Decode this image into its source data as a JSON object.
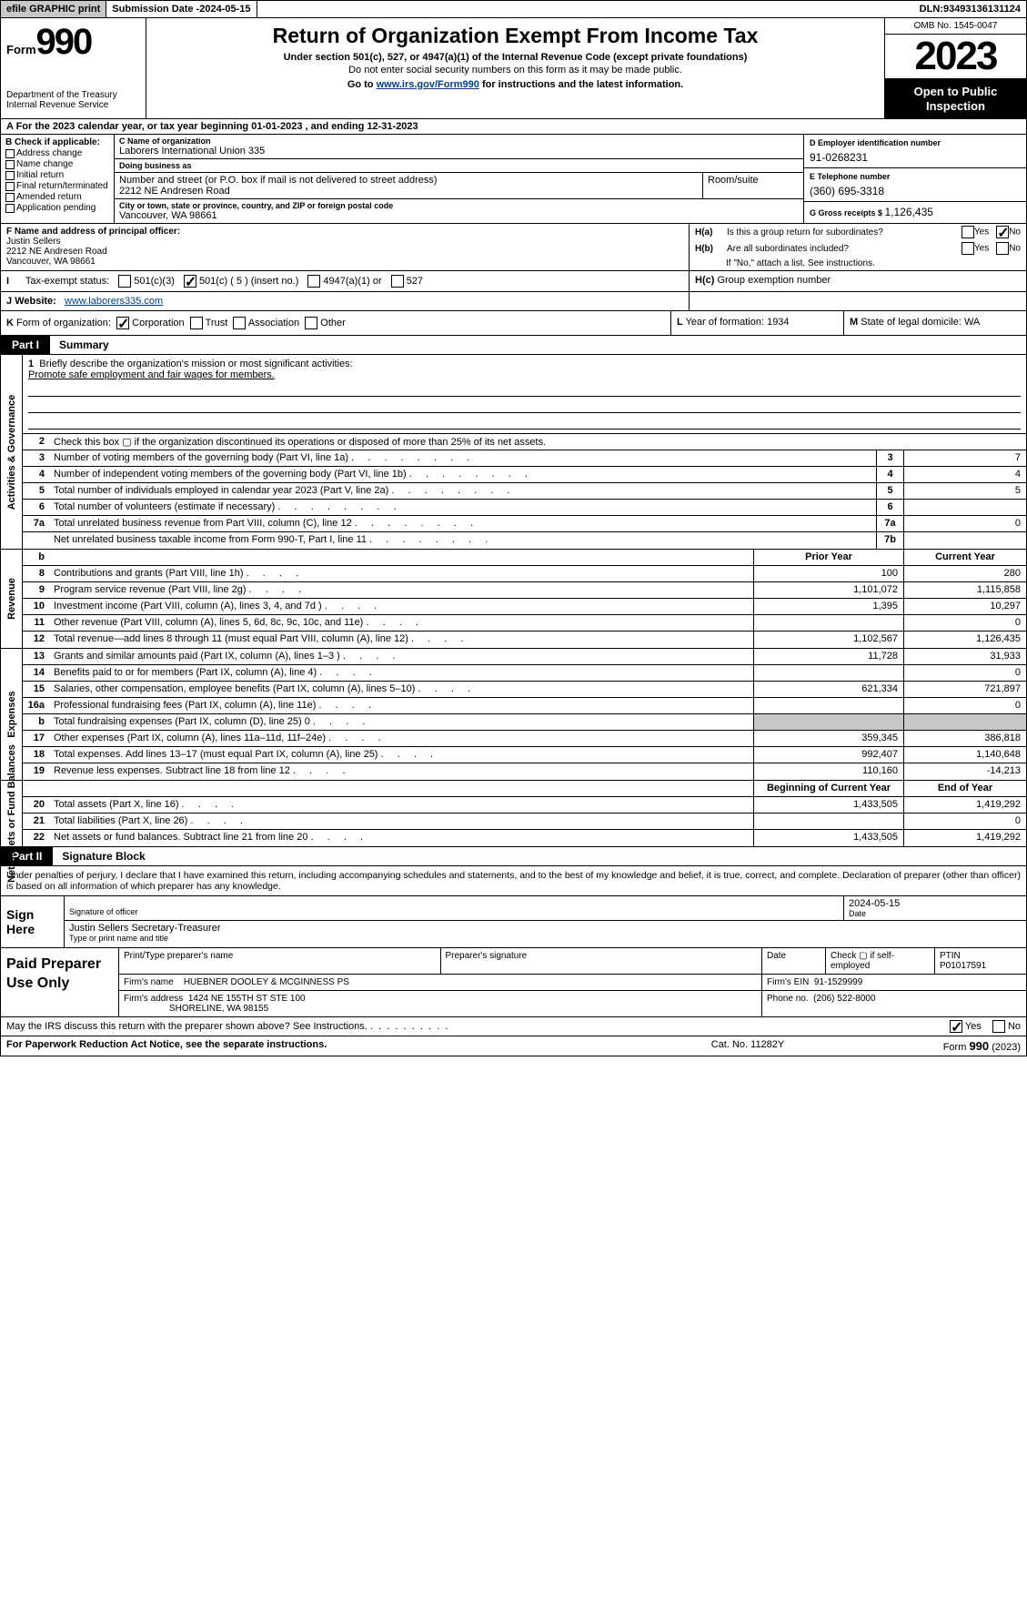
{
  "topbar": {
    "efile": "efile GRAPHIC print",
    "submission_label": "Submission Date - ",
    "submission_date": "2024-05-15",
    "dln_label": "DLN: ",
    "dln": "93493136131124"
  },
  "header": {
    "form_label": "Form",
    "form_number": "990",
    "dept": "Department of the Treasury",
    "irs": "Internal Revenue Service",
    "title": "Return of Organization Exempt From Income Tax",
    "subtitle": "Under section 501(c), 527, or 4947(a)(1) of the Internal Revenue Code (except private foundations)",
    "note": "Do not enter social security numbers on this form as it may be made public.",
    "goto_pre": "Go to ",
    "goto_link": "www.irs.gov/Form990",
    "goto_post": " for instructions and the latest information.",
    "omb": "OMB No. 1545-0047",
    "year": "2023",
    "open_public_1": "Open to Public",
    "open_public_2": "Inspection"
  },
  "row_a": {
    "text_pre": "A For the 2023 calendar year, or tax year beginning ",
    "begin": "01-01-2023",
    "mid": " , and ending ",
    "end": "12-31-2023"
  },
  "col_b": {
    "label": "B Check if applicable:",
    "opts": [
      "Address change",
      "Name change",
      "Initial return",
      "Final return/terminated",
      "Amended return",
      "Application pending"
    ]
  },
  "col_c": {
    "name_label": "C Name of organization",
    "name": "Laborers International Union 335",
    "dba_label": "Doing business as",
    "dba": "",
    "street_label": "Number and street (or P.O. box if mail is not delivered to street address)",
    "street": "2212 NE Andresen Road",
    "room_label": "Room/suite",
    "city_label": "City or town, state or province, country, and ZIP or foreign postal code",
    "city": "Vancouver, WA  98661"
  },
  "col_deg": {
    "d_label": "D Employer identification number",
    "d_val": "91-0268231",
    "e_label": "E Telephone number",
    "e_val": "(360) 695-3318",
    "g_label": "G Gross receipts $ ",
    "g_val": "1,126,435"
  },
  "row_f": {
    "label": "F  Name and address of principal officer:",
    "name": "Justin Sellers",
    "street": "2212 NE Andresen Road",
    "city": "Vancouver, WA  98661"
  },
  "row_h": {
    "ha_key": "H(a)",
    "ha_text": "Is this a group return for subordinates?",
    "ha_yes": "Yes",
    "ha_no": "No",
    "hb_key": "H(b)",
    "hb_text": "Are all subordinates included?",
    "hb_note": "If \"No,\" attach a list. See instructions.",
    "hc_key": "H(c)",
    "hc_text": "Group exemption number"
  },
  "row_i": {
    "key": "I",
    "label": "Tax-exempt status:",
    "opts": [
      "501(c)(3)",
      "501(c) ( 5 ) (insert no.)",
      "4947(a)(1) or",
      "527"
    ]
  },
  "row_j": {
    "key": "J",
    "label": "Website:",
    "val": "www.laborers335.com"
  },
  "row_k": {
    "key": "K",
    "label": "Form of organization:",
    "opts": [
      "Corporation",
      "Trust",
      "Association",
      "Other"
    ]
  },
  "row_l": {
    "key": "L",
    "text": "Year of formation: 1934"
  },
  "row_m": {
    "key": "M",
    "text": "State of legal domicile: WA"
  },
  "part1": {
    "label": "Part I",
    "title": "Summary",
    "sections": {
      "governance": {
        "vtab": "Activities & Governance",
        "line1_num": "1",
        "line1_text": "Briefly describe the organization's mission or most significant activities:",
        "mission": "Promote safe employment and fair wages for members.",
        "line2_num": "2",
        "line2_text": "Check this box ▢ if the organization discontinued its operations or disposed of more than 25% of its net assets.",
        "rows": [
          {
            "num": "3",
            "desc": "Number of voting members of the governing body (Part VI, line 1a)",
            "box": "3",
            "val": "7"
          },
          {
            "num": "4",
            "desc": "Number of independent voting members of the governing body (Part VI, line 1b)",
            "box": "4",
            "val": "4"
          },
          {
            "num": "5",
            "desc": "Total number of individuals employed in calendar year 2023 (Part V, line 2a)",
            "box": "5",
            "val": "5"
          },
          {
            "num": "6",
            "desc": "Total number of volunteers (estimate if necessary)",
            "box": "6",
            "val": ""
          },
          {
            "num": "7a",
            "desc": "Total unrelated business revenue from Part VIII, column (C), line 12",
            "box": "7a",
            "val": "0"
          },
          {
            "num": "",
            "desc": "Net unrelated business taxable income from Form 990-T, Part I, line 11",
            "box": "7b",
            "val": ""
          }
        ]
      },
      "revenue": {
        "vtab": "Revenue",
        "header": {
          "num": "b",
          "col1": "Prior Year",
          "col2": "Current Year"
        },
        "rows": [
          {
            "num": "8",
            "desc": "Contributions and grants (Part VIII, line 1h)",
            "col1": "100",
            "col2": "280"
          },
          {
            "num": "9",
            "desc": "Program service revenue (Part VIII, line 2g)",
            "col1": "1,101,072",
            "col2": "1,115,858"
          },
          {
            "num": "10",
            "desc": "Investment income (Part VIII, column (A), lines 3, 4, and 7d )",
            "col1": "1,395",
            "col2": "10,297"
          },
          {
            "num": "11",
            "desc": "Other revenue (Part VIII, column (A), lines 5, 6d, 8c, 9c, 10c, and 11e)",
            "col1": "",
            "col2": "0"
          },
          {
            "num": "12",
            "desc": "Total revenue—add lines 8 through 11 (must equal Part VIII, column (A), line 12)",
            "col1": "1,102,567",
            "col2": "1,126,435"
          }
        ]
      },
      "expenses": {
        "vtab": "Expenses",
        "rows": [
          {
            "num": "13",
            "desc": "Grants and similar amounts paid (Part IX, column (A), lines 1–3 )",
            "col1": "11,728",
            "col2": "31,933"
          },
          {
            "num": "14",
            "desc": "Benefits paid to or for members (Part IX, column (A), line 4)",
            "col1": "",
            "col2": "0"
          },
          {
            "num": "15",
            "desc": "Salaries, other compensation, employee benefits (Part IX, column (A), lines 5–10)",
            "col1": "621,334",
            "col2": "721,897"
          },
          {
            "num": "16a",
            "desc": "Professional fundraising fees (Part IX, column (A), line 11e)",
            "col1": "",
            "col2": "0"
          },
          {
            "num": "b",
            "desc": "Total fundraising expenses (Part IX, column (D), line 25) 0",
            "col1": "GRAY",
            "col2": "GRAY"
          },
          {
            "num": "17",
            "desc": "Other expenses (Part IX, column (A), lines 11a–11d, 11f–24e)",
            "col1": "359,345",
            "col2": "386,818"
          },
          {
            "num": "18",
            "desc": "Total expenses. Add lines 13–17 (must equal Part IX, column (A), line 25)",
            "col1": "992,407",
            "col2": "1,140,648"
          },
          {
            "num": "19",
            "desc": "Revenue less expenses. Subtract line 18 from line 12",
            "col1": "110,160",
            "col2": "-14,213"
          }
        ]
      },
      "netassets": {
        "vtab": "Net Assets or Fund Balances",
        "header": {
          "col1": "Beginning of Current Year",
          "col2": "End of Year"
        },
        "rows": [
          {
            "num": "20",
            "desc": "Total assets (Part X, line 16)",
            "col1": "1,433,505",
            "col2": "1,419,292"
          },
          {
            "num": "21",
            "desc": "Total liabilities (Part X, line 26)",
            "col1": "",
            "col2": "0"
          },
          {
            "num": "22",
            "desc": "Net assets or fund balances. Subtract line 21 from line 20",
            "col1": "1,433,505",
            "col2": "1,419,292"
          }
        ]
      }
    }
  },
  "part2": {
    "label": "Part II",
    "title": "Signature Block",
    "text": "Under penalties of perjury, I declare that I have examined this return, including accompanying schedules and statements, and to the best of my knowledge and belief, it is true, correct, and complete. Declaration of preparer (other than officer) is based on all information of which preparer has any knowledge."
  },
  "sign": {
    "label": "Sign Here",
    "date": "2024-05-15",
    "sig_label": "Signature of officer",
    "officer": "Justin Sellers  Secretary-Treasurer",
    "type_label": "Type or print name and title",
    "date_label": "Date"
  },
  "preparer": {
    "label": "Paid Preparer Use Only",
    "name_label": "Print/Type preparer's name",
    "sig_label": "Preparer's signature",
    "date_label": "Date",
    "check_label": "Check ▢ if self-employed",
    "ptin_label": "PTIN",
    "ptin": "P01017591",
    "firm_name_label": "Firm's name",
    "firm_name": "HUEBNER DOOLEY & MCGINNESS PS",
    "firm_ein_label": "Firm's EIN",
    "firm_ein": "91-1529999",
    "firm_addr_label": "Firm's address",
    "firm_addr1": "1424 NE 155TH ST STE 100",
    "firm_addr2": "SHORELINE, WA  98155",
    "phone_label": "Phone no.",
    "phone": "(206) 522-8000"
  },
  "irs_discuss": {
    "q": "May the IRS discuss this return with the preparer shown above? See Instructions.",
    "yes": "Yes",
    "no": "No"
  },
  "footer": {
    "paperwork": "For Paperwork Reduction Act Notice, see the separate instructions.",
    "catno": "Cat. No. 11282Y",
    "form_pre": "Form ",
    "form": "990",
    "form_post": " (2023)"
  }
}
